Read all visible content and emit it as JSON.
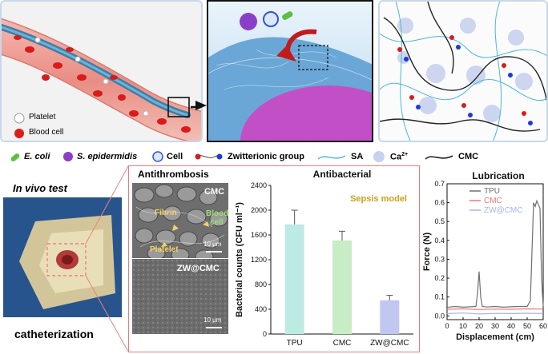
{
  "panel1": {
    "platelet_label": "Platelet",
    "blood_cell_label": "Blood cell"
  },
  "legend": {
    "ecoli": "E. coli",
    "sepi": "S. epidermidis",
    "cell": "Cell",
    "zwitterionic": "Zwitterionic group",
    "sa": "SA",
    "ca": "Ca",
    "ca_sup": "2+",
    "cmc": "CMC"
  },
  "invivo": {
    "title": "In vivo test",
    "caption": "catheterization"
  },
  "antithrombosis": {
    "title": "Antithrombosis",
    "top_label": "CMC",
    "fibrin": "Fibrin",
    "blood_cell_1": "Blood",
    "blood_cell_2": "cell",
    "platelet": "Platelet",
    "scale_top": "10 μm",
    "bottom_label": "ZW@CMC",
    "scale_bottom": "10 μm"
  },
  "colors": {
    "panel_border": "#e87a7a",
    "tpu": "#6f6f6f",
    "cmc": "#f07878",
    "zw": "#a9b3ec",
    "bar_tpu": "#bdeae3",
    "bar_cmc": "#c8ecc5",
    "bar_zw": "#c1c7f0",
    "sepsis": "#c8a21a"
  },
  "chart_data": [
    {
      "type": "bar",
      "title": "Antibacterial",
      "annotation": "Sepsis model",
      "ylabel": "Bacterial counts (CFU ml⁻¹)",
      "categories": [
        "TPU",
        "CMC",
        "ZW@CMC"
      ],
      "values": [
        1770,
        1510,
        545
      ],
      "errors": [
        230,
        150,
        80
      ],
      "ylim": [
        0,
        2400
      ],
      "yticks": [
        "0",
        "400",
        "800",
        "1200",
        "1600",
        "2000",
        "2400"
      ]
    },
    {
      "type": "line",
      "title": "Lubrication",
      "xlabel": "Displacement (cm)",
      "ylabel": "Force (N)",
      "xlim": [
        0,
        60
      ],
      "ylim": [
        -0.02,
        0.7
      ],
      "xticks": [
        "0",
        "10",
        "20",
        "30",
        "40",
        "50",
        "60"
      ],
      "yticks": [
        "0.0",
        "0.1",
        "0.2",
        "0.3",
        "0.4",
        "0.5",
        "0.6",
        "0.7"
      ],
      "legend_position": "top-right",
      "series": [
        {
          "name": "TPU",
          "x": [
            0,
            5,
            10,
            15,
            18,
            19,
            20,
            21,
            22,
            25,
            30,
            35,
            40,
            45,
            50,
            52,
            54,
            55,
            56,
            57,
            58,
            59,
            60
          ],
          "y": [
            0.045,
            0.05,
            0.046,
            0.048,
            0.05,
            0.12,
            0.235,
            0.1,
            0.05,
            0.047,
            0.05,
            0.046,
            0.048,
            0.05,
            0.05,
            0.08,
            0.6,
            0.58,
            0.61,
            0.59,
            0.57,
            0.2,
            0.05
          ]
        },
        {
          "name": "CMC",
          "x": [
            0,
            10,
            20,
            30,
            40,
            50,
            60
          ],
          "y": [
            0.035,
            0.037,
            0.034,
            0.036,
            0.035,
            0.037,
            0.036
          ]
        },
        {
          "name": "ZW@CMC",
          "x": [
            0,
            10,
            20,
            30,
            40,
            50,
            60
          ],
          "y": [
            0.012,
            0.015,
            0.01,
            0.013,
            0.012,
            0.014,
            0.012
          ]
        }
      ]
    }
  ]
}
